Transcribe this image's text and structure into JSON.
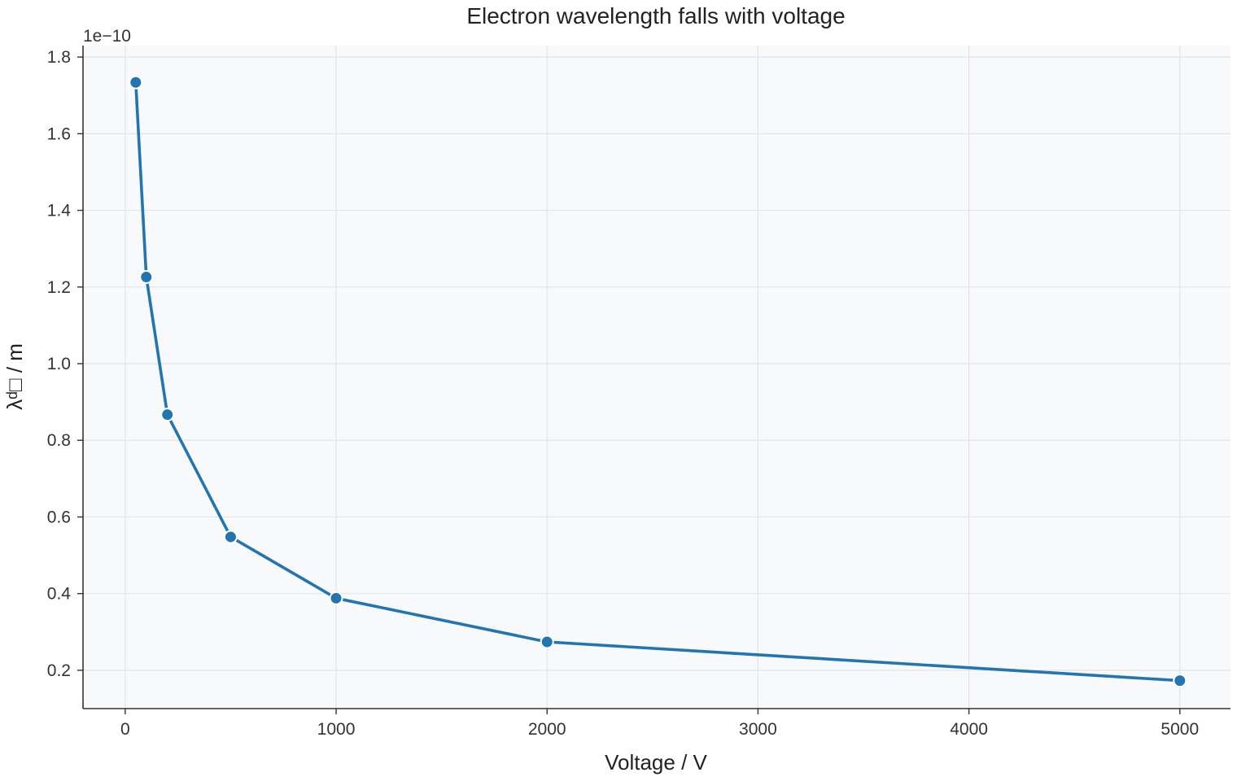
{
  "chart_data": {
    "type": "line",
    "title": "Electron wavelength falls with voltage",
    "xlabel": "Voltage / V",
    "ylabel": "λᵈ□ / m",
    "y_offset_label": "1e−10",
    "xlim": [
      -200,
      5240
    ],
    "ylim": [
      0.1,
      1.83
    ],
    "x_ticks": [
      0,
      1000,
      2000,
      3000,
      4000,
      5000
    ],
    "x_tick_labels": [
      "0",
      "1000",
      "2000",
      "3000",
      "4000",
      "5000"
    ],
    "y_ticks": [
      0.2,
      0.4,
      0.6,
      0.8,
      1.0,
      1.2,
      1.4,
      1.6,
      1.8
    ],
    "y_tick_labels": [
      "0.2",
      "0.4",
      "0.6",
      "0.8",
      "1.0",
      "1.2",
      "1.4",
      "1.6",
      "1.8"
    ],
    "grid": true,
    "series": [
      {
        "x": [
          50,
          100,
          200,
          500,
          1000,
          2000,
          5000
        ],
        "values": [
          1.734,
          1.226,
          0.867,
          0.548,
          0.388,
          0.274,
          0.173
        ],
        "color": "#2275b0"
      }
    ],
    "colors": {
      "plot_background": "#f8f9fa",
      "grid": "#e3e4e6",
      "axis": "#333333",
      "marker_edge": "#ffffff"
    }
  }
}
